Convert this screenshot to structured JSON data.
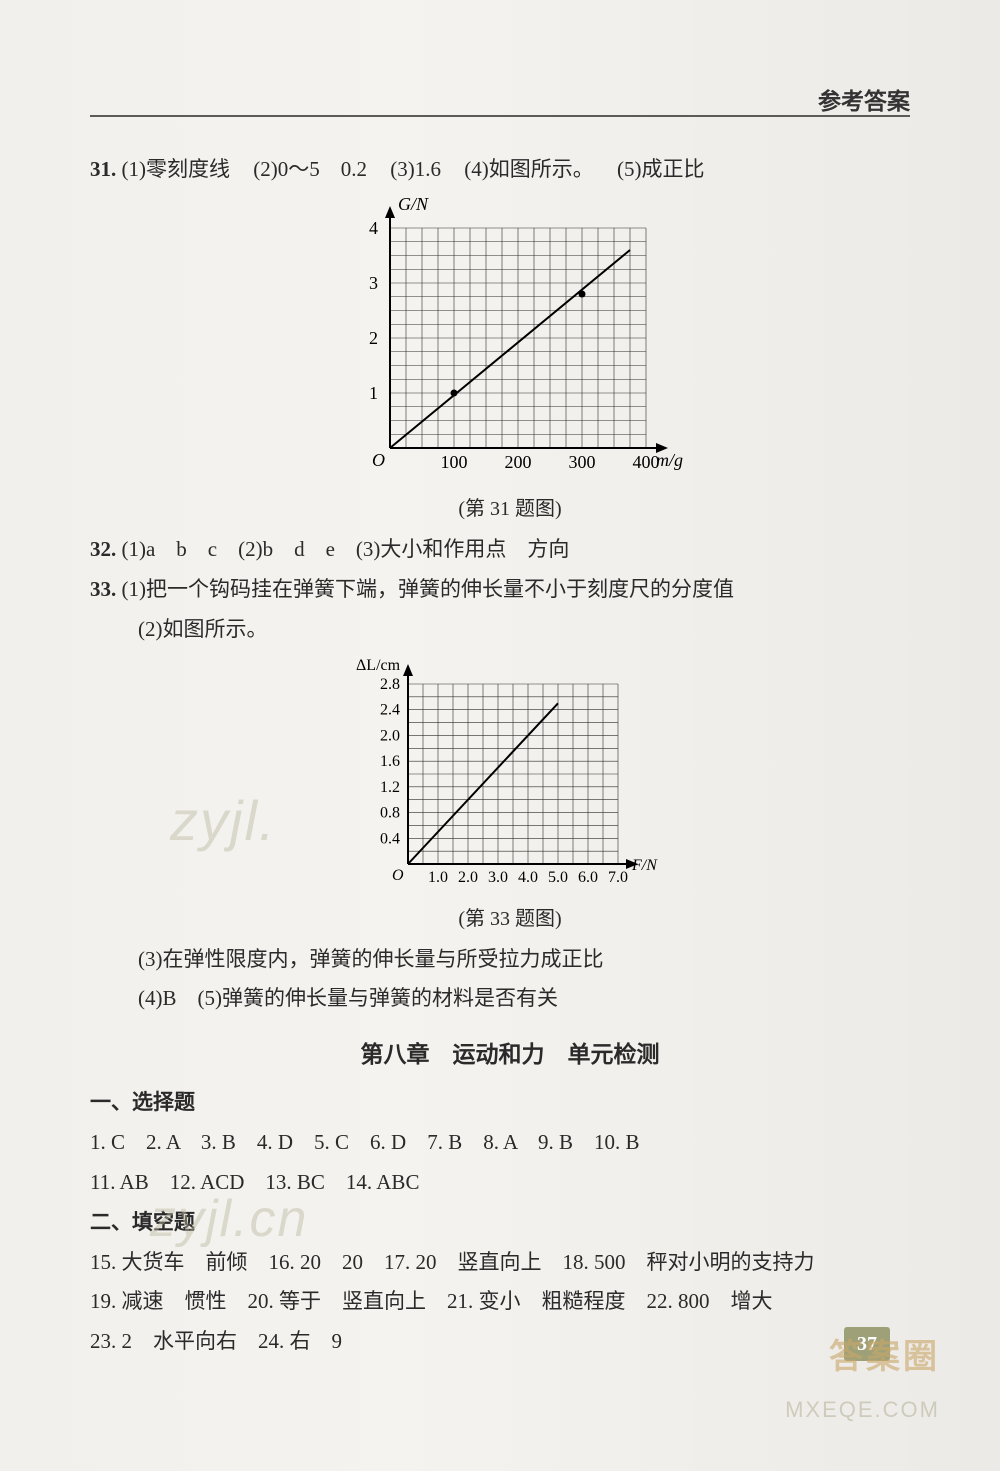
{
  "header": {
    "label": "参考答案"
  },
  "q31": {
    "num": "31.",
    "parts": [
      "(1)零刻度线",
      "(2)0～5　0.2",
      "(3)1.6",
      "(4)如图所示。",
      "(5)成正比"
    ],
    "caption": "(第 31 题图)",
    "chart": {
      "type": "line",
      "x_label": "m/g",
      "y_label": "G/N",
      "x_ticks_labeled": [
        100,
        200,
        300,
        400
      ],
      "x_minor_step": 25,
      "x_range": [
        0,
        400
      ],
      "y_ticks_labeled": [
        1,
        2,
        3,
        4
      ],
      "y_minor_step": 0.25,
      "y_range": [
        0,
        4
      ],
      "points": [
        {
          "x": 100,
          "y": 1
        },
        {
          "x": 300,
          "y": 2.8
        }
      ],
      "line_from": {
        "x": 0,
        "y": 0
      },
      "line_to": {
        "x": 375,
        "y": 3.6
      },
      "grid_color": "#2d2d2d",
      "axis_color": "#000000",
      "bg": "#f4f2ee",
      "line_width": 2,
      "tick_fontsize": 18
    }
  },
  "q32": {
    "num": "32.",
    "text": "(1)a　b　c　(2)b　d　e　(3)大小和作用点　方向"
  },
  "q33": {
    "num": "33.",
    "line1": "(1)把一个钩码挂在弹簧下端，弹簧的伸长量不小于刻度尺的分度值",
    "line2": "(2)如图所示。",
    "caption": "(第 33 题图)",
    "line3": "(3)在弹性限度内，弹簧的伸长量与所受拉力成正比",
    "line4": "(4)B　(5)弹簧的伸长量与弹簧的材料是否有关",
    "chart": {
      "type": "line",
      "x_label": "F/N",
      "y_label": "ΔL/cm",
      "x_ticks": [
        1.0,
        2.0,
        3.0,
        4.0,
        5.0,
        6.0,
        7.0
      ],
      "x_minor_step": 0.5,
      "x_range": [
        0,
        7.0
      ],
      "y_ticks": [
        0.4,
        0.8,
        1.2,
        1.6,
        2.0,
        2.4,
        2.8
      ],
      "y_minor_step": 0.2,
      "y_range": [
        0,
        2.8
      ],
      "line_from": {
        "x": 0,
        "y": 0
      },
      "line_to": {
        "x": 5.0,
        "y": 2.5
      },
      "grid_color": "#2d2d2d",
      "axis_color": "#000000",
      "bg": "#f4f2ee",
      "line_width": 2,
      "tick_fontsize": 16
    }
  },
  "chapter8": {
    "title": "第八章　运动和力　单元检测",
    "sec1": "一、选择题",
    "row1": "1. C　2. A　3. B　4. D　5. C　6. D　7. B　8. A　9. B　10. B",
    "row2": "11. AB　12. ACD　13. BC　14. ABC",
    "sec2": "二、填空题",
    "row3": "15. 大货车　前倾　16. 20　20　17. 20　竖直向上　18. 500　秤对小明的支持力",
    "row4": "19. 减速　惯性　20. 等于　竖直向上　21. 变小　粗糙程度　22. 800　增大",
    "row5": "23. 2　水平向右　24. 右　9"
  },
  "pagenum": "37",
  "watermark_mid1": "zyjl.",
  "watermark_mid2": "zyjl.cn",
  "watermark_bottom": {
    "l1": "答案圈",
    "l2": "MXEQE.COM"
  }
}
